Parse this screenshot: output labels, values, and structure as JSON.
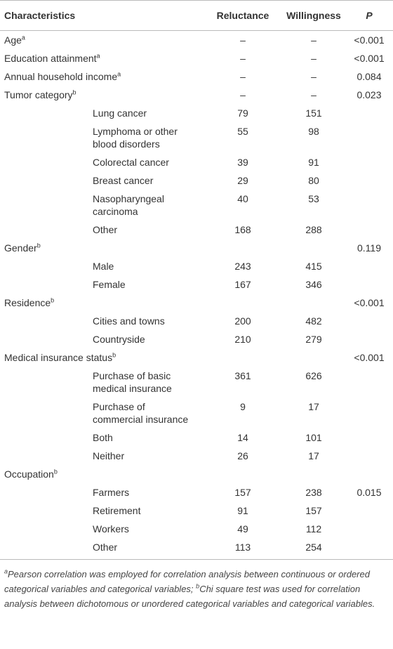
{
  "table": {
    "header": {
      "characteristics": "Characteristics",
      "reluctance": "Reluctance",
      "willingness": "Willingness",
      "p": "P"
    },
    "sections": [
      {
        "label": "Age",
        "sup": "a",
        "reluctance": "–",
        "willingness": "–",
        "p": "<0.001"
      },
      {
        "label": "Education attainment",
        "sup": "a",
        "reluctance": "–",
        "willingness": "–",
        "p": "<0.001"
      },
      {
        "label": "Annual household income",
        "sup": "a",
        "reluctance": "–",
        "willingness": "–",
        "p": "0.084"
      },
      {
        "label": "Tumor category",
        "sup": "b",
        "reluctance": "–",
        "willingness": "–",
        "p": "0.023",
        "rows": [
          {
            "label": "Lung cancer",
            "reluctance": "79",
            "willingness": "151"
          },
          {
            "label": "Lymphoma or other blood disorders",
            "reluctance": "55",
            "willingness": "98"
          },
          {
            "label": "Colorectal cancer",
            "reluctance": "39",
            "willingness": "91"
          },
          {
            "label": "Breast cancer",
            "reluctance": "29",
            "willingness": "80"
          },
          {
            "label": "Nasopharyngeal carcinoma",
            "reluctance": "40",
            "willingness": "53"
          },
          {
            "label": "Other",
            "reluctance": "168",
            "willingness": "288"
          }
        ]
      },
      {
        "label": "Gender",
        "sup": "b",
        "p": "0.119",
        "rows": [
          {
            "label": "Male",
            "reluctance": "243",
            "willingness": "415"
          },
          {
            "label": "Female",
            "reluctance": "167",
            "willingness": "346"
          }
        ]
      },
      {
        "label": "Residence",
        "sup": "b",
        "p": "<0.001",
        "rows": [
          {
            "label": "Cities and towns",
            "reluctance": "200",
            "willingness": "482"
          },
          {
            "label": "Countryside",
            "reluctance": "210",
            "willingness": "279"
          }
        ]
      },
      {
        "label": "Medical insurance status",
        "sup": "b",
        "p": "<0.001",
        "rows": [
          {
            "label": "Purchase of basic medical insurance",
            "reluctance": "361",
            "willingness": "626"
          },
          {
            "label": "Purchase of commercial insurance",
            "reluctance": "9",
            "willingness": "17"
          },
          {
            "label": "Both",
            "reluctance": "14",
            "willingness": "101"
          },
          {
            "label": "Neither",
            "reluctance": "26",
            "willingness": "17"
          }
        ]
      },
      {
        "label": "Occupation",
        "sup": "b",
        "rows": [
          {
            "label": "Farmers",
            "reluctance": "157",
            "willingness": "238",
            "p": "0.015"
          },
          {
            "label": "Retirement",
            "reluctance": "91",
            "willingness": "157"
          },
          {
            "label": "Workers",
            "reluctance": "49",
            "willingness": "112"
          },
          {
            "label": "Other",
            "reluctance": "113",
            "willingness": "254"
          }
        ]
      }
    ]
  },
  "footnotes": [
    {
      "sup": "a",
      "text": "Pearson correlation was employed for correlation analysis between continuous or ordered categorical variables and categorical variables;"
    },
    {
      "sup": "b",
      "text": "Chi square test was used for correlation analysis between dichotomous or unordered categorical variables and categorical variables."
    }
  ]
}
